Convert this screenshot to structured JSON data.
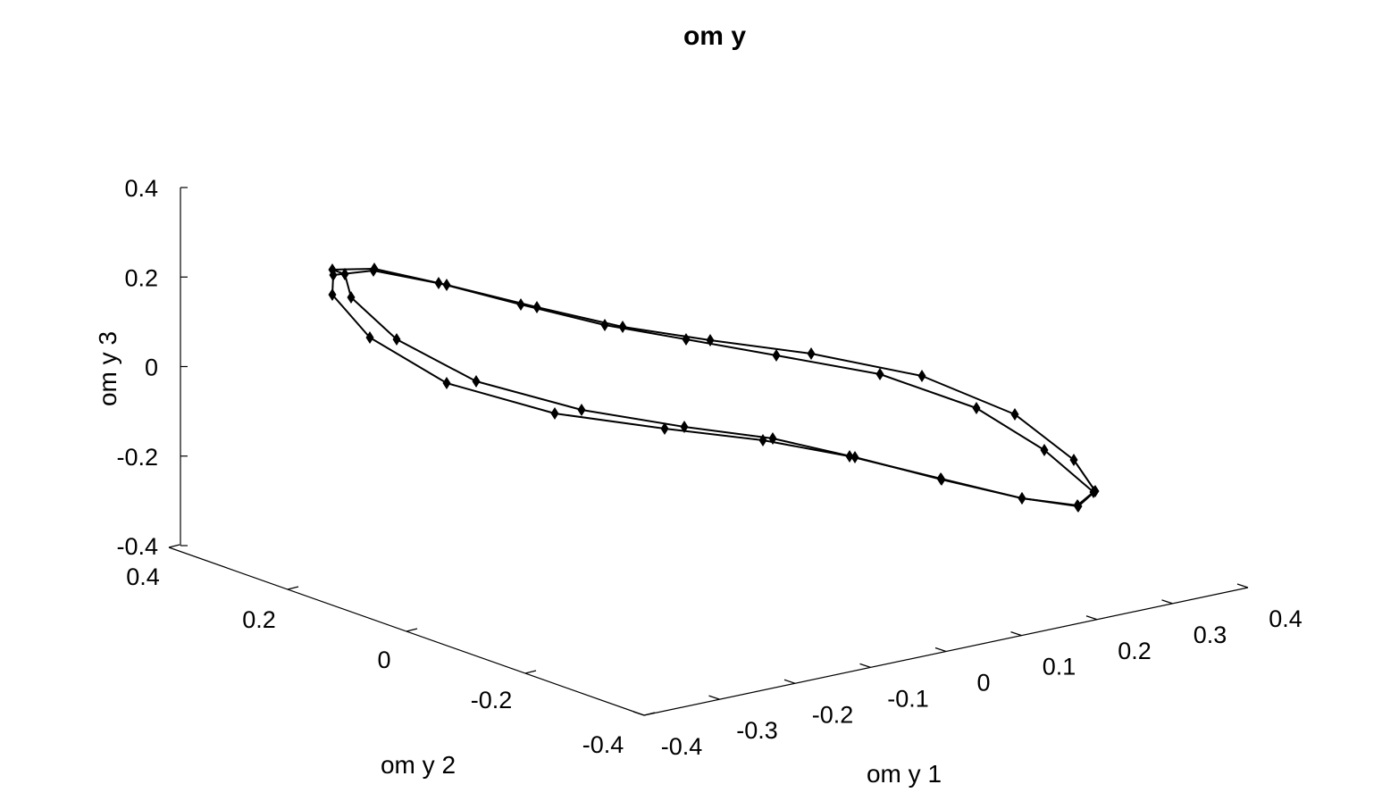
{
  "chart_data": {
    "type": "line3d",
    "title": "om y",
    "xlabel": "om y 1",
    "ylabel": "om y 2",
    "zlabel": "om y 3",
    "xlim": [
      -0.4,
      0.4
    ],
    "ylim": [
      -0.4,
      0.4
    ],
    "zlim": [
      -0.4,
      0.4
    ],
    "x_ticks": [
      "-0.4",
      "-0.3",
      "-0.2",
      "-0.1",
      "0",
      "0.1",
      "0.2",
      "0.3",
      "0.4"
    ],
    "y_ticks": [
      "-0.4",
      "-0.2",
      "0",
      "0.2",
      "0.4"
    ],
    "z_ticks": [
      "-0.4",
      "-0.2",
      "0",
      "0.2",
      "0.4"
    ],
    "grid": false,
    "marker": "diamond",
    "series": [
      {
        "projected": [
          [
            372,
            302
          ],
          [
            419,
            301
          ],
          [
            491,
            317
          ],
          [
            583,
            341
          ],
          [
            677,
            364
          ],
          [
            768,
            380
          ],
          [
            869,
            398
          ],
          [
            985,
            419
          ],
          [
            1093,
            457
          ],
          [
            1169,
            504
          ],
          [
            1224,
            551
          ],
          [
            1206,
            566
          ],
          [
            1144,
            558
          ],
          [
            1054,
            537
          ],
          [
            957,
            512
          ],
          [
            865,
            491
          ],
          [
            766,
            478
          ],
          [
            651,
            459
          ],
          [
            533,
            427
          ],
          [
            444,
            380
          ],
          [
            393,
            333
          ],
          [
            386,
            307
          ],
          [
            372,
            302
          ]
        ]
      },
      {
        "projected": [
          [
            418,
            303
          ],
          [
            500,
            319
          ],
          [
            601,
            344
          ],
          [
            697,
            366
          ],
          [
            795,
            381
          ],
          [
            908,
            396
          ],
          [
            1032,
            421
          ],
          [
            1136,
            464
          ],
          [
            1202,
            515
          ],
          [
            1226,
            550
          ],
          [
            1207,
            567
          ],
          [
            1144,
            558
          ],
          [
            1053,
            536
          ],
          [
            951,
            511
          ],
          [
            854,
            493
          ],
          [
            744,
            480
          ],
          [
            621,
            463
          ],
          [
            500,
            429
          ],
          [
            414,
            378
          ],
          [
            372,
            330
          ],
          [
            373,
            308
          ],
          [
            418,
            303
          ]
        ]
      }
    ]
  }
}
